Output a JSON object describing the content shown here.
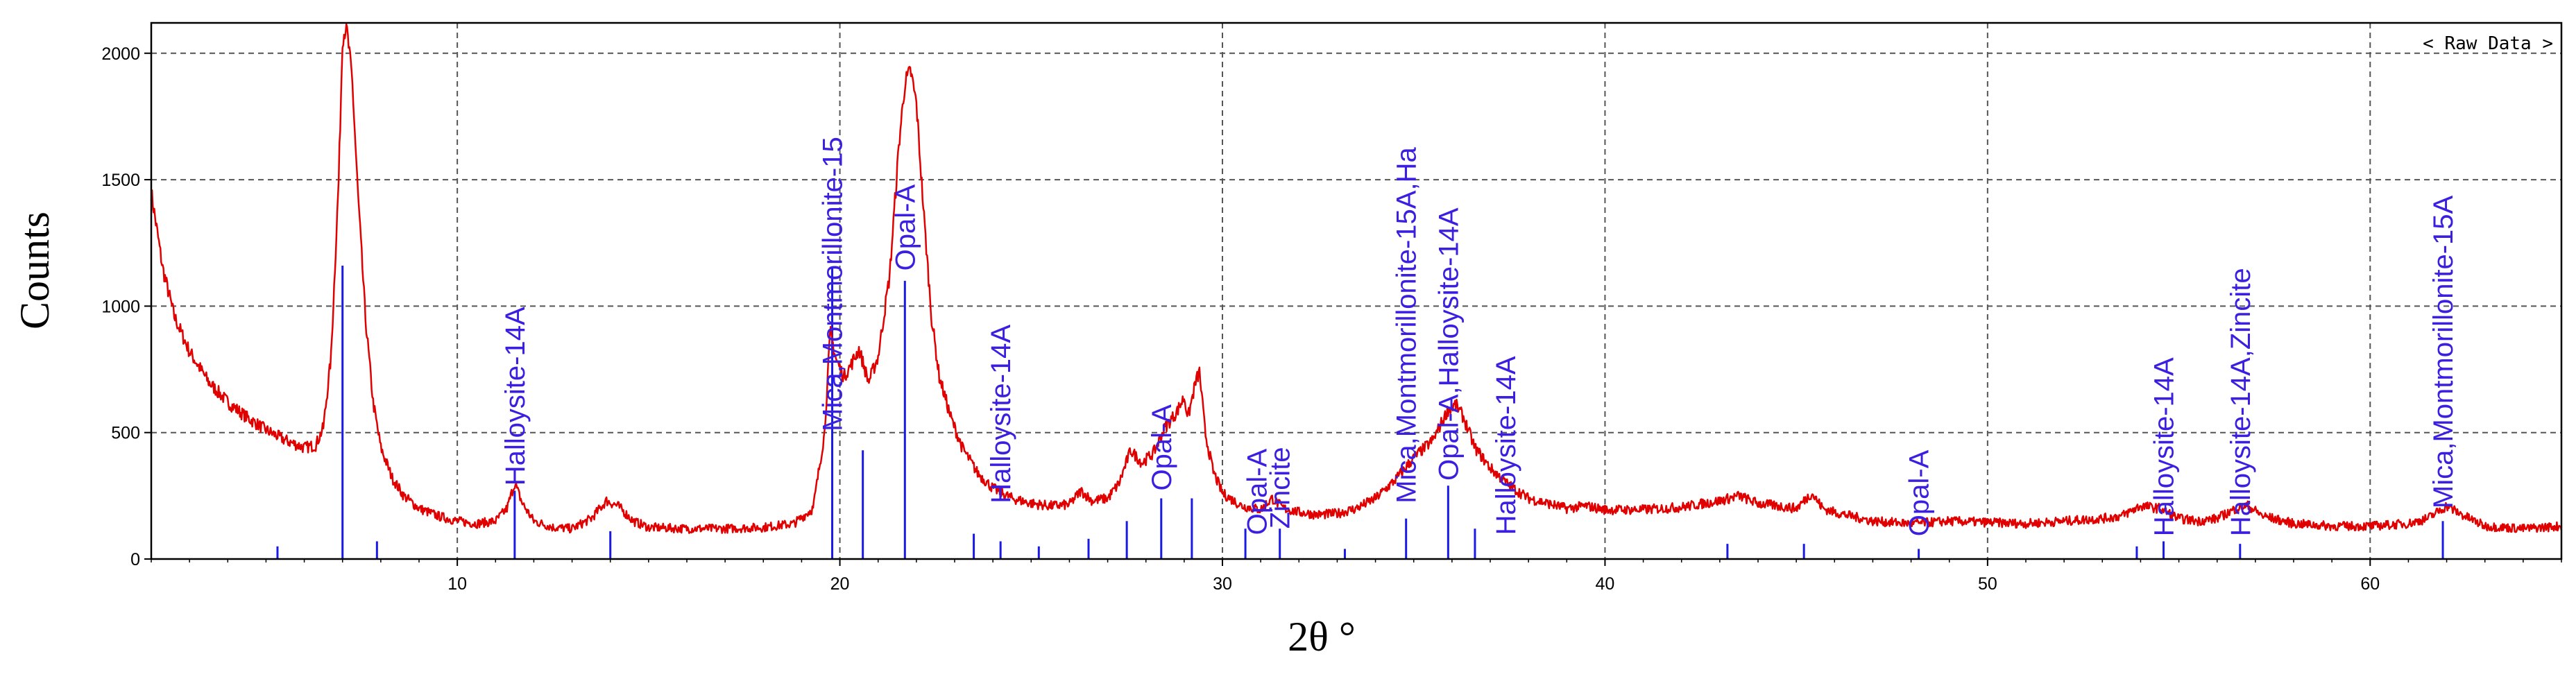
{
  "chart_data": {
    "type": "line",
    "xlabel": "2θ °",
    "ylabel": "Counts",
    "legend": {
      "text": "< Raw Data >",
      "placement": "top-right"
    },
    "xlim": [
      2,
      65
    ],
    "ylim": [
      0,
      2120
    ],
    "xticks": [
      10,
      20,
      30,
      40,
      50,
      60
    ],
    "yticks": [
      0,
      500,
      1000,
      1500,
      2000
    ],
    "grid": true,
    "colors": {
      "pattern": "#e00000",
      "reference": "#1a1ae6",
      "labels": "#3a1fe0",
      "grid": "#555555"
    },
    "series": [
      {
        "role": "measured pattern",
        "points": [
          [
            2.0,
            1450
          ],
          [
            2.3,
            1150
          ],
          [
            2.6,
            960
          ],
          [
            3.0,
            820
          ],
          [
            3.5,
            700
          ],
          [
            4.0,
            620
          ],
          [
            4.5,
            560
          ],
          [
            5.0,
            510
          ],
          [
            5.5,
            470
          ],
          [
            6.0,
            440
          ],
          [
            6.3,
            450
          ],
          [
            6.5,
            520
          ],
          [
            6.7,
            800
          ],
          [
            6.9,
            1500
          ],
          [
            7.0,
            2060
          ],
          [
            7.1,
            2110
          ],
          [
            7.25,
            1900
          ],
          [
            7.4,
            1450
          ],
          [
            7.6,
            950
          ],
          [
            7.8,
            620
          ],
          [
            8.0,
            440
          ],
          [
            8.3,
            320
          ],
          [
            8.6,
            250
          ],
          [
            9.0,
            200
          ],
          [
            9.5,
            170
          ],
          [
            10.0,
            150
          ],
          [
            10.5,
            140
          ],
          [
            11.0,
            150
          ],
          [
            11.3,
            200
          ],
          [
            11.5,
            300
          ],
          [
            11.7,
            220
          ],
          [
            12.0,
            150
          ],
          [
            12.5,
            125
          ],
          [
            13.0,
            120
          ],
          [
            13.5,
            160
          ],
          [
            13.9,
            230
          ],
          [
            14.2,
            210
          ],
          [
            14.6,
            150
          ],
          [
            15.0,
            125
          ],
          [
            16.0,
            120
          ],
          [
            17.0,
            120
          ],
          [
            18.0,
            125
          ],
          [
            18.8,
            140
          ],
          [
            19.3,
            200
          ],
          [
            19.6,
            500
          ],
          [
            19.75,
            900
          ],
          [
            19.9,
            790
          ],
          [
            20.1,
            720
          ],
          [
            20.3,
            770
          ],
          [
            20.5,
            830
          ],
          [
            20.75,
            700
          ],
          [
            21.0,
            800
          ],
          [
            21.3,
            1120
          ],
          [
            21.55,
            1650
          ],
          [
            21.7,
            1880
          ],
          [
            21.85,
            1930
          ],
          [
            22.0,
            1800
          ],
          [
            22.2,
            1350
          ],
          [
            22.4,
            950
          ],
          [
            22.6,
            720
          ],
          [
            22.9,
            560
          ],
          [
            23.2,
            440
          ],
          [
            23.6,
            340
          ],
          [
            24.0,
            280
          ],
          [
            24.5,
            240
          ],
          [
            25.0,
            220
          ],
          [
            25.5,
            210
          ],
          [
            26.0,
            215
          ],
          [
            26.3,
            270
          ],
          [
            26.6,
            230
          ],
          [
            27.0,
            240
          ],
          [
            27.3,
            300
          ],
          [
            27.6,
            430
          ],
          [
            27.9,
            380
          ],
          [
            28.2,
            420
          ],
          [
            28.5,
            520
          ],
          [
            28.8,
            580
          ],
          [
            29.0,
            640
          ],
          [
            29.1,
            560
          ],
          [
            29.3,
            700
          ],
          [
            29.4,
            740
          ],
          [
            29.55,
            500
          ],
          [
            29.75,
            350
          ],
          [
            30.0,
            260
          ],
          [
            30.5,
            210
          ],
          [
            31.0,
            195
          ],
          [
            31.3,
            240
          ],
          [
            31.6,
            200
          ],
          [
            32.0,
            185
          ],
          [
            32.5,
            175
          ],
          [
            33.0,
            180
          ],
          [
            33.5,
            200
          ],
          [
            34.0,
            240
          ],
          [
            34.5,
            310
          ],
          [
            35.0,
            400
          ],
          [
            35.5,
            470
          ],
          [
            35.9,
            590
          ],
          [
            36.1,
            610
          ],
          [
            36.3,
            560
          ],
          [
            36.6,
            440
          ],
          [
            37.0,
            360
          ],
          [
            37.5,
            290
          ],
          [
            38.0,
            240
          ],
          [
            38.5,
            220
          ],
          [
            39.0,
            200
          ],
          [
            39.5,
            210
          ],
          [
            40.0,
            195
          ],
          [
            41.0,
            195
          ],
          [
            42.0,
            205
          ],
          [
            43.0,
            230
          ],
          [
            43.5,
            250
          ],
          [
            44.0,
            220
          ],
          [
            45.0,
            200
          ],
          [
            45.4,
            260
          ],
          [
            45.7,
            200
          ],
          [
            46.0,
            185
          ],
          [
            47.0,
            150
          ],
          [
            48.0,
            140
          ],
          [
            49.0,
            150
          ],
          [
            50.0,
            145
          ],
          [
            51.0,
            140
          ],
          [
            52.0,
            150
          ],
          [
            53.0,
            160
          ],
          [
            53.5,
            170
          ],
          [
            54.0,
            210
          ],
          [
            54.5,
            200
          ],
          [
            55.0,
            160
          ],
          [
            55.5,
            150
          ],
          [
            56.0,
            160
          ],
          [
            56.5,
            200
          ],
          [
            56.8,
            210
          ],
          [
            57.2,
            170
          ],
          [
            58.0,
            140
          ],
          [
            59.0,
            130
          ],
          [
            60.0,
            130
          ],
          [
            61.0,
            140
          ],
          [
            61.5,
            160
          ],
          [
            62.0,
            210
          ],
          [
            62.4,
            175
          ],
          [
            63.0,
            130
          ],
          [
            64.0,
            120
          ],
          [
            65.0,
            130
          ]
        ]
      },
      {
        "role": "reference sticks",
        "sticks": [
          [
            5.3,
            50
          ],
          [
            7.0,
            1160
          ],
          [
            7.9,
            70
          ],
          [
            11.5,
            270
          ],
          [
            14.0,
            110
          ],
          [
            19.8,
            1150
          ],
          [
            20.6,
            430
          ],
          [
            21.7,
            1100
          ],
          [
            23.5,
            100
          ],
          [
            24.2,
            70
          ],
          [
            25.2,
            50
          ],
          [
            26.5,
            80
          ],
          [
            27.5,
            150
          ],
          [
            28.4,
            240
          ],
          [
            29.2,
            240
          ],
          [
            30.6,
            120
          ],
          [
            31.5,
            120
          ],
          [
            33.2,
            40
          ],
          [
            34.8,
            160
          ],
          [
            35.9,
            290
          ],
          [
            36.6,
            120
          ],
          [
            43.2,
            60
          ],
          [
            45.2,
            60
          ],
          [
            48.2,
            40
          ],
          [
            53.9,
            50
          ],
          [
            54.6,
            70
          ],
          [
            56.6,
            60
          ],
          [
            61.9,
            150
          ]
        ]
      }
    ],
    "annotations": [
      {
        "x": 11.5,
        "y": 290,
        "text": "Halloysite-14A"
      },
      {
        "x": 19.8,
        "y": 505,
        "text": "Mica,Montmorillonite-15"
      },
      {
        "x": 21.7,
        "y": 1140,
        "text": "Opal-A"
      },
      {
        "x": 24.2,
        "y": 220,
        "text": "Halloysite-14A"
      },
      {
        "x": 28.4,
        "y": 270,
        "text": "Opal-A"
      },
      {
        "x": 30.9,
        "y": 95,
        "text": "Opal-A"
      },
      {
        "x": 31.5,
        "y": 120,
        "text": "Zincite"
      },
      {
        "x": 34.8,
        "y": 220,
        "text": "Mica,Montmorillonite-15A,Ha"
      },
      {
        "x": 35.9,
        "y": 310,
        "text": "Opal-A,Halloysite-14A"
      },
      {
        "x": 37.4,
        "y": 95,
        "text": "Halloysite-14A"
      },
      {
        "x": 48.2,
        "y": 90,
        "text": "Opal-A"
      },
      {
        "x": 54.6,
        "y": 90,
        "text": "Halloysite-14A"
      },
      {
        "x": 56.6,
        "y": 90,
        "text": "Halloysite-14A,Zincite"
      },
      {
        "x": 61.9,
        "y": 200,
        "text": "Mica,Montmorillonite-15A"
      }
    ]
  }
}
